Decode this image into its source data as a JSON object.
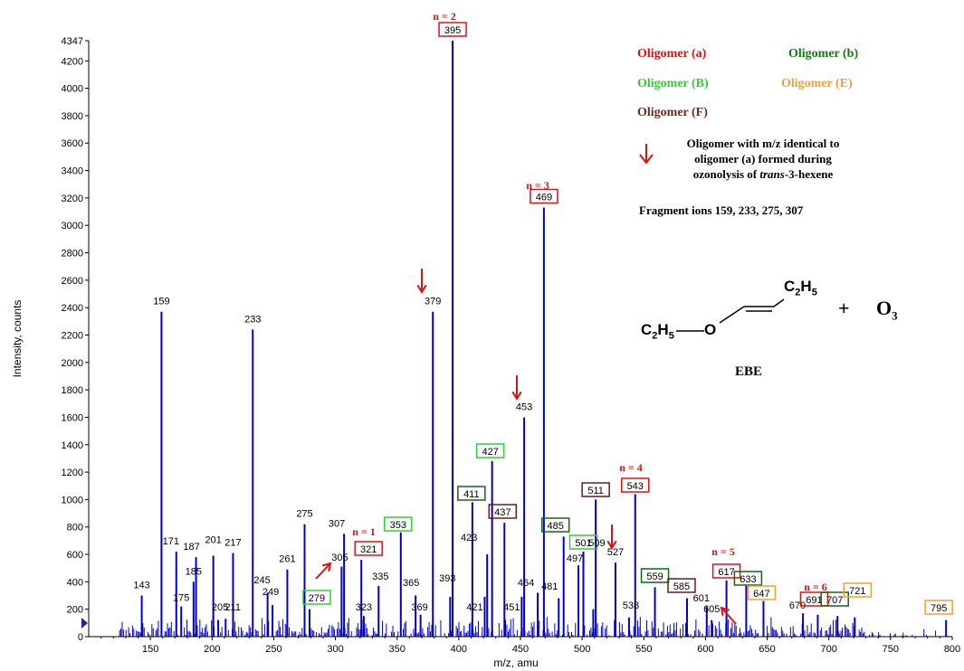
{
  "chart_data": {
    "type": "bar",
    "xlabel": "m/z, amu",
    "ylabel": "Intensity, counts",
    "xlim": [
      100,
      800
    ],
    "ylim": [
      0,
      4347
    ],
    "x_ticks": [
      "150",
      "200",
      "250",
      "300",
      "350",
      "400",
      "450",
      "500",
      "550",
      "600",
      "650",
      "700",
      "750",
      "800"
    ],
    "y_ticks": [
      "0",
      "200",
      "400",
      "600",
      "800",
      "1000",
      "1200",
      "1400",
      "1600",
      "1800",
      "2000",
      "2200",
      "2400",
      "2600",
      "2800",
      "3000",
      "3200",
      "3400",
      "3600",
      "3800",
      "4000",
      "4200",
      "4347"
    ],
    "peaks": [
      {
        "x": 143,
        "y": 300,
        "label": "143"
      },
      {
        "x": 159,
        "y": 2370,
        "label": "159"
      },
      {
        "x": 171,
        "y": 620,
        "label": "171"
      },
      {
        "x": 175,
        "y": 220,
        "label": "175"
      },
      {
        "x": 185,
        "y": 400,
        "label": "185"
      },
      {
        "x": 187,
        "y": 580,
        "label": "187"
      },
      {
        "x": 201,
        "y": 590,
        "label": "201"
      },
      {
        "x": 205,
        "y": 120,
        "label": "205"
      },
      {
        "x": 211,
        "y": 130,
        "label": "211"
      },
      {
        "x": 217,
        "y": 610,
        "label": "217"
      },
      {
        "x": 233,
        "y": 2240,
        "label": "233"
      },
      {
        "x": 245,
        "y": 320,
        "label": "245"
      },
      {
        "x": 249,
        "y": 230,
        "label": "249"
      },
      {
        "x": 261,
        "y": 490,
        "label": "261"
      },
      {
        "x": 275,
        "y": 820,
        "label": "275"
      },
      {
        "x": 279,
        "y": 200,
        "label": "279",
        "box": "#33cc33"
      },
      {
        "x": 305,
        "y": 510,
        "label": "305"
      },
      {
        "x": 307,
        "y": 750,
        "label": "307"
      },
      {
        "x": 321,
        "y": 560,
        "label": "321",
        "box": "#e01010"
      },
      {
        "x": 323,
        "y": 150,
        "label": "323"
      },
      {
        "x": 335,
        "y": 370,
        "label": "335"
      },
      {
        "x": 353,
        "y": 760,
        "label": "353",
        "box": "#33cc33"
      },
      {
        "x": 365,
        "y": 300,
        "label": "365"
      },
      {
        "x": 369,
        "y": 160,
        "label": "369"
      },
      {
        "x": 379,
        "y": 2370,
        "label": "379"
      },
      {
        "x": 393,
        "y": 290,
        "label": "393"
      },
      {
        "x": 395,
        "y": 4347,
        "label": "395",
        "box": "#e01010"
      },
      {
        "x": 411,
        "y": 980,
        "label": "411",
        "box": "#116611"
      },
      {
        "x": 421,
        "y": 290,
        "label": "421"
      },
      {
        "x": 423,
        "y": 600,
        "label": "423"
      },
      {
        "x": 427,
        "y": 1280,
        "label": "427",
        "box": "#33cc33"
      },
      {
        "x": 437,
        "y": 830,
        "label": "437",
        "box": "#6b1a1a"
      },
      {
        "x": 451,
        "y": 290,
        "label": "451"
      },
      {
        "x": 453,
        "y": 1600,
        "label": "453"
      },
      {
        "x": 464,
        "y": 320,
        "label": "464"
      },
      {
        "x": 469,
        "y": 3130,
        "label": "469",
        "box": "#e01010"
      },
      {
        "x": 481,
        "y": 280,
        "label": "481"
      },
      {
        "x": 485,
        "y": 730,
        "label": "485",
        "box": "#116611"
      },
      {
        "x": 497,
        "y": 520,
        "label": "497"
      },
      {
        "x": 501,
        "y": 620,
        "label": "501",
        "box": "#33cc33"
      },
      {
        "x": 509,
        "y": 200,
        "label": "509"
      },
      {
        "x": 511,
        "y": 1000,
        "label": "511",
        "box": "#6b1a1a"
      },
      {
        "x": 527,
        "y": 540,
        "label": "527"
      },
      {
        "x": 538,
        "y": 140,
        "label": "538"
      },
      {
        "x": 543,
        "y": 1040,
        "label": "543",
        "box": "#e01010"
      },
      {
        "x": 559,
        "y": 360,
        "label": "559",
        "box": "#116611"
      },
      {
        "x": 585,
        "y": 280,
        "label": "585",
        "box": "#6b1a1a"
      },
      {
        "x": 601,
        "y": 220,
        "label": "601"
      },
      {
        "x": 605,
        "y": 120,
        "label": "605"
      },
      {
        "x": 617,
        "y": 410,
        "label": "617",
        "box": "#e01010"
      },
      {
        "x": 633,
        "y": 370,
        "label": "633",
        "box": "#116611"
      },
      {
        "x": 647,
        "y": 260,
        "label": "647",
        "box": "#f2a033"
      },
      {
        "x": 679,
        "y": 170,
        "label": "679"
      },
      {
        "x": 691,
        "y": 160,
        "label": "691",
        "box": "#e01010"
      },
      {
        "x": 707,
        "y": 150,
        "label": "707",
        "box": "#116611"
      },
      {
        "x": 721,
        "y": 140,
        "label": "721",
        "box": "#f2a033"
      },
      {
        "x": 795,
        "y": 120,
        "label": "795",
        "box": "#f2a033"
      }
    ],
    "n_labels": [
      {
        "text": "n = 1",
        "x": 321
      },
      {
        "text": "n = 2",
        "x": 395
      },
      {
        "text": "n = 3",
        "x": 469
      },
      {
        "text": "n = 4",
        "x": 543
      },
      {
        "text": "n = 5",
        "x": 617
      },
      {
        "text": "n = 6",
        "x": 691
      }
    ],
    "legend": [
      {
        "name": "Oligomer (a)",
        "color": "#e01010"
      },
      {
        "name": "Oligomer (b)",
        "color": "#117a11"
      },
      {
        "name": "Oligomer (B)",
        "color": "#33cc33"
      },
      {
        "name": "Oligomer (E)",
        "color": "#f2a033"
      },
      {
        "name": "Oligomer (F)",
        "color": "#6b2a1a"
      }
    ],
    "colors": {
      "bars": "#0000cc",
      "arrow": "#e01010"
    }
  },
  "notes": {
    "arrow_note_line1": "Oligomer with m/z identical to",
    "arrow_note_line2": "oligomer (a) formed during",
    "arrow_note_line3_pre": "ozonolysis of ",
    "arrow_note_line3_em": "trans",
    "arrow_note_line3_post": "-3-hexene",
    "fragments": "Fragment  ions 159, 233, 275, 307"
  },
  "structure": {
    "c2h5_left": "C",
    "c2h5_left_sub1": "2",
    "c2h5_left_h": "H",
    "c2h5_left_sub2": "5",
    "oxygen": "O",
    "c2h5_right": "C",
    "c2h5_right_sub1": "2",
    "c2h5_right_h": "H",
    "c2h5_right_sub2": "5",
    "plus": "+",
    "ozone": "O",
    "ozone_sub": "3",
    "name": "EBE"
  }
}
